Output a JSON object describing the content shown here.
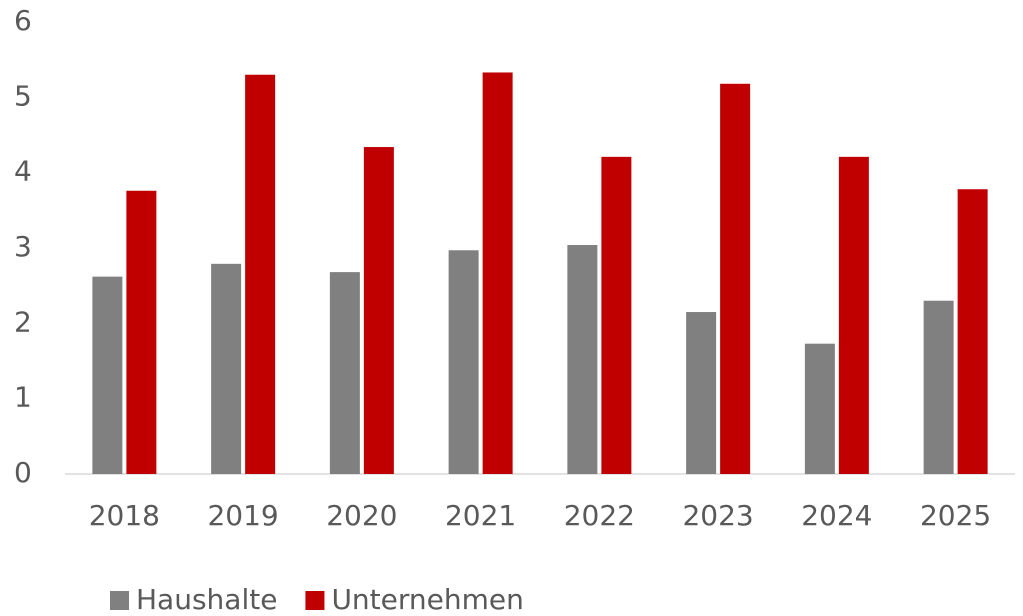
{
  "chart_data": {
    "type": "bar",
    "categories": [
      "2018",
      "2019",
      "2020",
      "2021",
      "2022",
      "2023",
      "2024",
      "2025"
    ],
    "series": [
      {
        "name": "Haushalte",
        "color": "#808080",
        "values": [
          2.62,
          2.79,
          2.68,
          2.97,
          3.04,
          2.15,
          1.73,
          2.3
        ]
      },
      {
        "name": "Unternehmen",
        "color": "#c00000",
        "values": [
          3.76,
          5.3,
          4.34,
          5.33,
          4.21,
          5.18,
          4.21,
          3.78
        ]
      }
    ],
    "ylim": [
      0,
      6
    ],
    "yticks": [
      0,
      1,
      2,
      3,
      4,
      5,
      6
    ],
    "grid": false,
    "legend": "bottom"
  }
}
